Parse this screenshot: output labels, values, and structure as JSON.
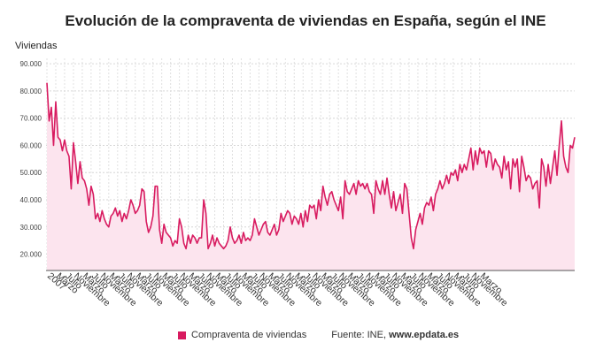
{
  "chart_data": {
    "type": "area",
    "title": "Evolución de la compraventa de viviendas en España, según el INE",
    "ylabel": "Viviendas",
    "ylim": [
      14000,
      92000
    ],
    "yticks": [
      20000,
      30000,
      40000,
      50000,
      60000,
      70000,
      80000,
      90000
    ],
    "ytick_labels": [
      "20.000",
      "30.000",
      "40.000",
      "50.000",
      "60.000",
      "70.000",
      "80.000",
      "90.000"
    ],
    "grid": true,
    "legend_position": "bottom",
    "x_start": "2007-01",
    "xtick_labels": [
      "2007",
      "Marzo",
      "Julio",
      "Noviembre",
      "Marzo",
      "Julio",
      "Noviembre",
      "Marzo",
      "Julio",
      "Noviembre",
      "Marzo",
      "Julio",
      "Noviembre",
      "Marzo",
      "Julio",
      "Noviembre",
      "Marzo",
      "Julio",
      "Noviembre",
      "Marzo",
      "Julio",
      "Noviembre",
      "Marzo",
      "Julio",
      "Noviembre",
      "Marzo",
      "Julio",
      "Noviembre",
      "Marzo",
      "Julio",
      "Noviembre",
      "Marzo",
      "Julio",
      "Noviembre",
      "Marzo",
      "Julio",
      "Noviembre",
      "Marzo",
      "Julio",
      "Noviembre",
      "Marzo",
      "Julio",
      "Noviembre",
      "Marzo",
      "Julio",
      "Noviembre",
      "Marzo",
      "Julio",
      "Noviembre",
      "Marzo"
    ],
    "series": [
      {
        "name": "Compraventa de viviendas",
        "color": "#d81b60",
        "fill": "#fce4ee",
        "values": [
          83000,
          69000,
          74000,
          60000,
          76000,
          63000,
          62000,
          58000,
          62000,
          58000,
          56000,
          44000,
          61000,
          54000,
          46000,
          54000,
          48000,
          47000,
          44000,
          38000,
          45000,
          42000,
          33000,
          35000,
          32000,
          36000,
          33000,
          31000,
          30000,
          34000,
          35000,
          37000,
          34000,
          36000,
          32000,
          35000,
          33000,
          36000,
          40000,
          38000,
          35000,
          36000,
          38000,
          44000,
          43000,
          32000,
          28000,
          30000,
          34000,
          45000,
          45000,
          29000,
          24000,
          31000,
          28000,
          27000,
          26000,
          23000,
          25000,
          24000,
          33000,
          30000,
          24000,
          22000,
          27000,
          24000,
          27000,
          26000,
          24000,
          26000,
          26000,
          40000,
          35000,
          22000,
          24000,
          27000,
          23000,
          26000,
          24000,
          23000,
          22000,
          23000,
          25000,
          30000,
          26000,
          24000,
          25000,
          27000,
          24000,
          28000,
          25000,
          26000,
          25000,
          27000,
          33000,
          30000,
          27000,
          29000,
          31000,
          32000,
          28000,
          27000,
          29000,
          31000,
          27000,
          29000,
          35000,
          32000,
          34000,
          36000,
          35000,
          31000,
          34000,
          33000,
          31000,
          35000,
          30000,
          36000,
          32000,
          38000,
          37000,
          38000,
          33000,
          40000,
          36000,
          45000,
          41000,
          38000,
          42000,
          43000,
          40000,
          38000,
          36000,
          41000,
          33000,
          47000,
          43000,
          42000,
          44000,
          46000,
          42000,
          47000,
          45000,
          46000,
          44000,
          46000,
          43000,
          42000,
          35000,
          47000,
          44000,
          42000,
          47000,
          42000,
          48000,
          42000,
          37000,
          43000,
          36000,
          39000,
          42000,
          35000,
          46000,
          44000,
          35000,
          26000,
          22000,
          29000,
          32000,
          35000,
          31000,
          37000,
          39000,
          38000,
          41000,
          36000,
          42000,
          44000,
          47000,
          44000,
          46000,
          49000,
          46000,
          50000,
          49000,
          51000,
          47000,
          53000,
          50000,
          53000,
          51000,
          55000,
          59000,
          51000,
          58000,
          53000,
          59000,
          57000,
          58000,
          52000,
          58000,
          57000,
          51000,
          55000,
          53000,
          52000,
          48000,
          56000,
          51000,
          54000,
          44000,
          55000,
          52000,
          55000,
          43000,
          56000,
          52000,
          47000,
          49000,
          48000,
          44000,
          46000,
          47000,
          37000,
          55000,
          52000,
          45000,
          53000,
          46000,
          52000,
          58000,
          49000,
          60000,
          69000,
          56000,
          52000,
          50000,
          60000,
          59000,
          63000
        ]
      }
    ]
  },
  "legend": {
    "label": "Compraventa de viviendas"
  },
  "source": {
    "label": "Fuente: INE,",
    "site": "www.epdata.es"
  }
}
